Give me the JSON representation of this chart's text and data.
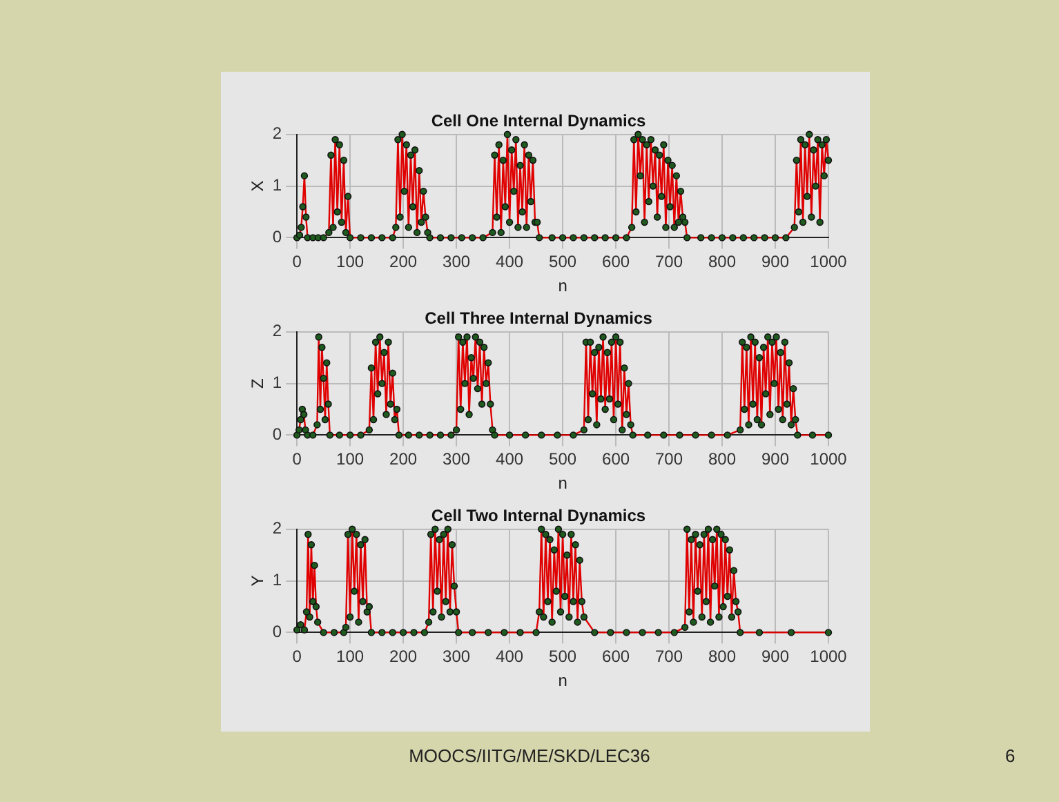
{
  "chart_data": [
    {
      "type": "line",
      "title": "Cell One Internal Dynamics",
      "xlabel": "n",
      "ylabel": "X",
      "xlim": [
        0,
        1000
      ],
      "ylim": [
        0,
        2
      ],
      "xticks": [
        0,
        100,
        200,
        300,
        400,
        500,
        600,
        700,
        800,
        900,
        1000
      ],
      "yticks": [
        0,
        1,
        2
      ],
      "grid": true,
      "marker": "circle",
      "series": [
        {
          "color": "#e00000",
          "x": [
            0,
            5,
            8,
            11,
            14,
            17,
            20,
            30,
            40,
            50,
            60,
            64,
            68,
            72,
            76,
            80,
            84,
            88,
            92,
            96,
            100,
            120,
            140,
            160,
            180,
            186,
            190,
            194,
            198,
            202,
            206,
            210,
            214,
            218,
            222,
            226,
            230,
            234,
            238,
            242,
            246,
            250,
            270,
            290,
            310,
            330,
            350,
            368,
            372,
            376,
            380,
            384,
            388,
            392,
            396,
            400,
            404,
            408,
            412,
            416,
            420,
            424,
            428,
            432,
            436,
            440,
            444,
            448,
            452,
            456,
            480,
            500,
            520,
            540,
            560,
            580,
            600,
            620,
            630,
            634,
            638,
            642,
            646,
            650,
            654,
            658,
            662,
            666,
            670,
            674,
            678,
            682,
            686,
            690,
            694,
            698,
            702,
            706,
            710,
            714,
            718,
            722,
            726,
            730,
            734,
            760,
            780,
            800,
            820,
            840,
            860,
            880,
            900,
            920,
            936,
            940,
            944,
            948,
            952,
            956,
            960,
            964,
            968,
            972,
            976,
            980,
            984,
            988,
            992,
            996,
            1000
          ],
          "values": [
            0,
            0.05,
            0.2,
            0.6,
            1.2,
            0.4,
            0,
            0,
            0,
            0,
            0.1,
            1.6,
            0.2,
            1.9,
            0.5,
            1.8,
            0.3,
            1.5,
            0.1,
            0.8,
            0,
            0,
            0,
            0,
            0,
            0.2,
            1.9,
            0.4,
            2,
            0.9,
            1.8,
            0.2,
            1.6,
            0.6,
            1.7,
            0.1,
            1.3,
            0.3,
            0.9,
            0.4,
            0.1,
            0,
            0,
            0,
            0,
            0,
            0,
            0.1,
            1.6,
            0.4,
            1.8,
            0.1,
            1.5,
            0.6,
            2,
            0.3,
            1.7,
            0.9,
            1.9,
            0.2,
            1.4,
            0.5,
            1.8,
            0.2,
            1.6,
            0.7,
            1.5,
            0.3,
            0.3,
            0,
            0,
            0,
            0,
            0,
            0,
            0,
            0,
            0,
            0.2,
            1.9,
            0.5,
            2,
            1.2,
            1.9,
            0.3,
            1.8,
            0.7,
            1.9,
            1,
            1.7,
            0.4,
            1.6,
            0.8,
            1.8,
            0.2,
            1.5,
            0.6,
            1.4,
            0.2,
            1.2,
            0.3,
            0.9,
            0.4,
            0.3,
            0,
            0,
            0,
            0,
            0,
            0,
            0,
            0,
            0,
            0,
            0.2,
            1.5,
            0.5,
            1.9,
            0.3,
            1.8,
            0.8,
            2,
            0.4,
            1.7,
            1,
            1.9,
            0.3,
            1.8,
            1.2,
            1.9,
            1.5
          ]
        }
      ]
    },
    {
      "type": "line",
      "title": "Cell Three Internal Dynamics",
      "xlabel": "n",
      "ylabel": "Z",
      "xlim": [
        0,
        1000
      ],
      "ylim": [
        0,
        2
      ],
      "xticks": [
        0,
        100,
        200,
        300,
        400,
        500,
        600,
        700,
        800,
        900,
        1000
      ],
      "yticks": [
        0,
        1,
        2
      ],
      "grid": true,
      "marker": "circle",
      "series": [
        {
          "color": "#e00000",
          "x": [
            0,
            4,
            7,
            10,
            13,
            16,
            20,
            30,
            38,
            41,
            44,
            47,
            50,
            53,
            56,
            59,
            62,
            80,
            100,
            120,
            136,
            140,
            144,
            148,
            152,
            156,
            160,
            164,
            168,
            172,
            176,
            180,
            184,
            188,
            192,
            210,
            230,
            250,
            270,
            290,
            300,
            304,
            308,
            312,
            316,
            320,
            324,
            328,
            332,
            336,
            340,
            344,
            348,
            352,
            356,
            360,
            364,
            368,
            372,
            400,
            430,
            460,
            490,
            520,
            540,
            544,
            548,
            552,
            556,
            560,
            564,
            568,
            572,
            576,
            580,
            584,
            588,
            592,
            596,
            600,
            604,
            608,
            612,
            616,
            620,
            624,
            628,
            632,
            660,
            690,
            720,
            750,
            780,
            810,
            834,
            838,
            842,
            846,
            850,
            854,
            858,
            862,
            866,
            870,
            874,
            878,
            882,
            886,
            890,
            894,
            898,
            902,
            906,
            910,
            914,
            918,
            922,
            926,
            930,
            934,
            938,
            942,
            970,
            1000
          ],
          "values": [
            0,
            0.1,
            0.3,
            0.5,
            0.4,
            0.1,
            0,
            0,
            0.2,
            1.9,
            0.5,
            1.7,
            1.1,
            0.3,
            1.4,
            0.6,
            0,
            0,
            0,
            0,
            0.1,
            1.3,
            0.3,
            1.8,
            0.8,
            1.9,
            1,
            1.6,
            0.4,
            1.8,
            0.6,
            1.2,
            0.3,
            0.5,
            0,
            0,
            0,
            0,
            0,
            0,
            0.1,
            1.9,
            0.5,
            1.8,
            1,
            1.9,
            0.4,
            1.5,
            1.1,
            1.9,
            0.9,
            1.8,
            0.6,
            1.7,
            1,
            1.4,
            0.6,
            0.1,
            0,
            0,
            0,
            0,
            0,
            0,
            0.1,
            1.8,
            0.3,
            1.8,
            0.8,
            1.6,
            0.2,
            1.7,
            0.7,
            1.9,
            0.5,
            1.6,
            0.7,
            1.8,
            0.3,
            1.9,
            0.6,
            1.8,
            0.1,
            1.3,
            0.4,
            1,
            0.2,
            0,
            0,
            0,
            0,
            0,
            0,
            0,
            0.1,
            1.8,
            0.5,
            1.7,
            0.2,
            1.9,
            0.6,
            1.8,
            0.3,
            1.5,
            0.2,
            1.7,
            0.8,
            1.9,
            0.4,
            1.8,
            1,
            1.9,
            0.5,
            1.6,
            0.3,
            1.8,
            0.6,
            1.4,
            0.2,
            0.9,
            0.3,
            0,
            0,
            0
          ]
        }
      ]
    },
    {
      "type": "line",
      "title": "Cell Two Internal Dynamics",
      "xlabel": "n",
      "ylabel": "Y",
      "xlim": [
        0,
        1000
      ],
      "ylim": [
        0,
        2
      ],
      "xticks": [
        0,
        100,
        200,
        300,
        400,
        500,
        600,
        700,
        800,
        900,
        1000
      ],
      "yticks": [
        0,
        1,
        2
      ],
      "grid": true,
      "marker": "circle",
      "series": [
        {
          "color": "#e00000",
          "x": [
            0,
            7,
            14,
            18,
            21,
            24,
            27,
            30,
            33,
            36,
            39,
            50,
            70,
            88,
            92,
            96,
            100,
            104,
            108,
            112,
            116,
            120,
            124,
            128,
            132,
            136,
            140,
            160,
            180,
            200,
            220,
            240,
            248,
            252,
            256,
            260,
            264,
            268,
            272,
            276,
            280,
            284,
            288,
            292,
            296,
            300,
            304,
            330,
            360,
            390,
            420,
            450,
            456,
            460,
            464,
            468,
            472,
            476,
            480,
            484,
            488,
            492,
            496,
            500,
            504,
            508,
            512,
            516,
            520,
            524,
            528,
            532,
            536,
            540,
            560,
            590,
            620,
            650,
            680,
            710,
            730,
            734,
            738,
            742,
            746,
            750,
            754,
            758,
            762,
            766,
            770,
            774,
            778,
            782,
            786,
            790,
            794,
            798,
            802,
            806,
            810,
            814,
            818,
            822,
            826,
            830,
            834,
            870,
            930,
            1000
          ],
          "values": [
            0.05,
            0.15,
            0.05,
            0.4,
            1.9,
            0.3,
            1.7,
            0.6,
            1.3,
            0.5,
            0.2,
            0,
            0,
            0,
            0.1,
            1.9,
            0.3,
            2,
            0.8,
            1.9,
            0.2,
            1.7,
            0.6,
            1.8,
            0.4,
            0.5,
            0,
            0,
            0,
            0,
            0,
            0,
            0.2,
            1.9,
            0.4,
            2,
            0.8,
            1.8,
            0.3,
            1.9,
            0.6,
            2,
            0.4,
            1.7,
            0.9,
            0.4,
            0,
            0,
            0,
            0,
            0,
            0,
            0.4,
            2,
            0.3,
            1.9,
            0.6,
            1.8,
            0.2,
            1.6,
            0.8,
            2,
            0.4,
            1.9,
            0.7,
            1.5,
            0.3,
            1.9,
            0.6,
            1.7,
            0.2,
            1.4,
            0.6,
            0.3,
            0,
            0,
            0,
            0,
            0,
            0,
            0.1,
            2,
            0.4,
            1.8,
            0.2,
            1.9,
            0.8,
            1.7,
            0.3,
            1.9,
            0.6,
            2,
            0.2,
            1.8,
            0.9,
            2,
            0.3,
            1.9,
            0.5,
            1.8,
            0.7,
            1.6,
            0.3,
            1.2,
            0.6,
            0.4,
            0,
            0,
            0,
            0
          ]
        }
      ],
      "annotations": [
        "MOOCS/IITG/ME/SKD/LEC36",
        "6"
      ]
    }
  ]
}
